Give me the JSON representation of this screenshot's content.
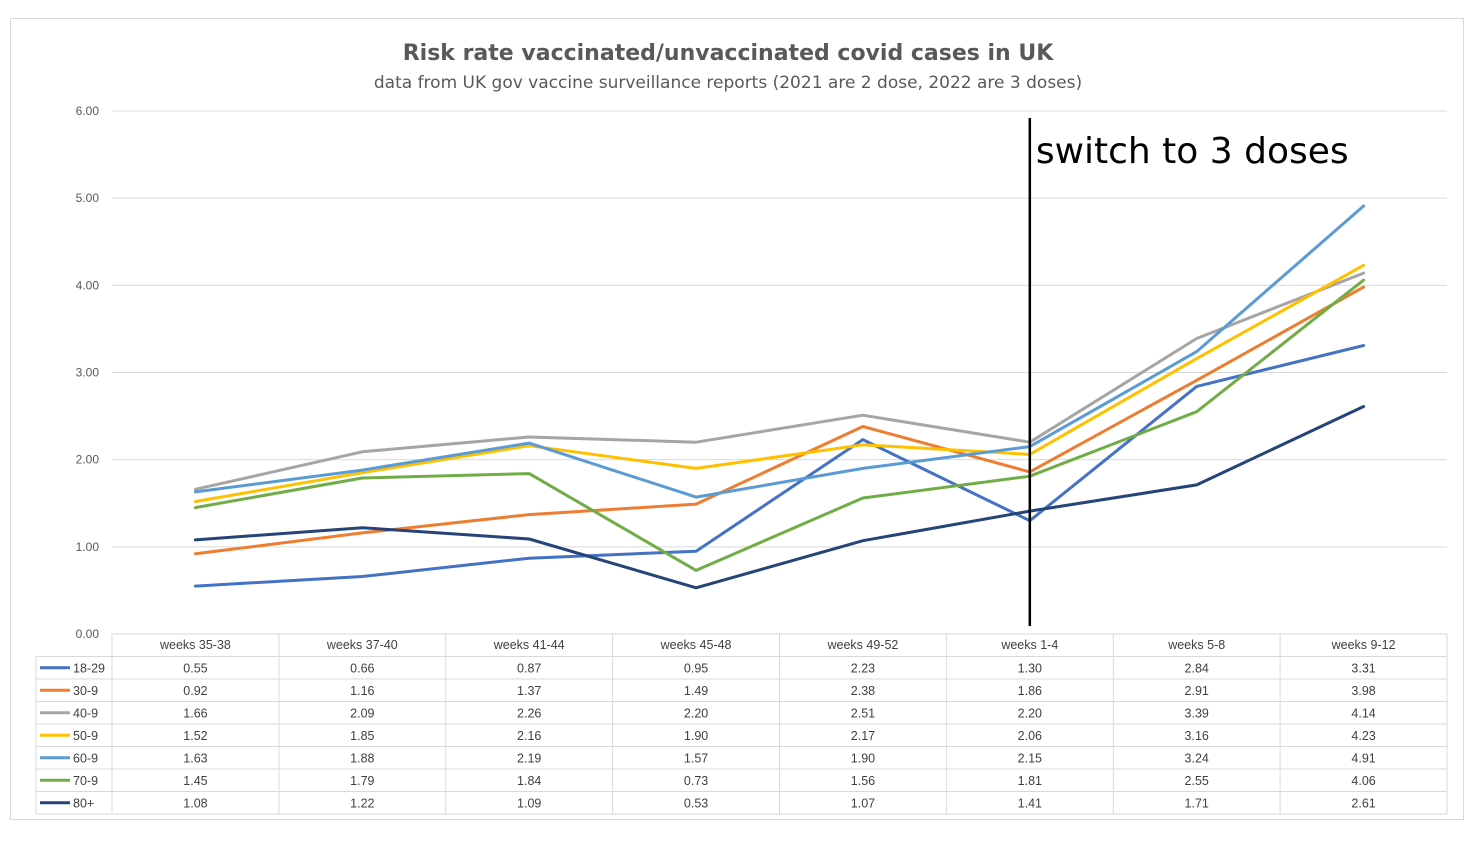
{
  "chart_data": {
    "type": "line",
    "title": "Risk rate vaccinated/unvaccinated covid cases in UK",
    "subtitle": "data from UK gov vaccine surveillance reports  (2021 are 2 dose, 2022 are 3 doses)",
    "categories": [
      "weeks 35-38",
      "weeks 37-40",
      "weeks 41-44",
      "weeks 45-48",
      "weeks 49-52",
      "weeks 1-4",
      "weeks 5-8",
      "weeks 9-12"
    ],
    "y_ticks": [
      "0.00",
      "1.00",
      "2.00",
      "3.00",
      "4.00",
      "5.00",
      "6.00"
    ],
    "ylim": [
      0,
      6
    ],
    "grid": true,
    "legend": "data table below chart",
    "annotation": {
      "text": "switch to 3 doses",
      "at_category": "weeks 1-4"
    },
    "series": [
      {
        "name": "18-29",
        "color": "#4472c4",
        "values": [
          0.55,
          0.66,
          0.87,
          0.95,
          2.23,
          1.3,
          2.84,
          3.31
        ],
        "labels": [
          "0.55",
          "0.66",
          "0.87",
          "0.95",
          "2.23",
          "1.30",
          "2.84",
          "3.31"
        ]
      },
      {
        "name": "30-9",
        "color": "#ed7d31",
        "values": [
          0.92,
          1.16,
          1.37,
          1.49,
          2.38,
          1.86,
          2.91,
          3.98
        ],
        "labels": [
          "0.92",
          "1.16",
          "1.37",
          "1.49",
          "2.38",
          "1.86",
          "2.91",
          "3.98"
        ]
      },
      {
        "name": "40-9",
        "color": "#a5a5a5",
        "values": [
          1.66,
          2.09,
          2.26,
          2.2,
          2.51,
          2.2,
          3.39,
          4.14
        ],
        "labels": [
          "1.66",
          "2.09",
          "2.26",
          "2.20",
          "2.51",
          "2.20",
          "3.39",
          "4.14"
        ]
      },
      {
        "name": "50-9",
        "color": "#ffc000",
        "values": [
          1.52,
          1.85,
          2.16,
          1.9,
          2.17,
          2.06,
          3.16,
          4.23
        ],
        "labels": [
          "1.52",
          "1.85",
          "2.16",
          "1.90",
          "2.17",
          "2.06",
          "3.16",
          "4.23"
        ]
      },
      {
        "name": "60-9",
        "color": "#5b9bd5",
        "values": [
          1.63,
          1.88,
          2.19,
          1.57,
          1.9,
          2.15,
          3.24,
          4.91
        ],
        "labels": [
          "1.63",
          "1.88",
          "2.19",
          "1.57",
          "1.90",
          "2.15",
          "3.24",
          "4.91"
        ]
      },
      {
        "name": "70-9",
        "color": "#70ad47",
        "values": [
          1.45,
          1.79,
          1.84,
          0.73,
          1.56,
          1.81,
          2.55,
          4.06
        ],
        "labels": [
          "1.45",
          "1.79",
          "1.84",
          "0.73",
          "1.56",
          "1.81",
          "2.55",
          "4.06"
        ]
      },
      {
        "name": "80+",
        "color": "#264478",
        "values": [
          1.08,
          1.22,
          1.09,
          0.53,
          1.07,
          1.41,
          1.71,
          2.61
        ],
        "labels": [
          "1.08",
          "1.22",
          "1.09",
          "0.53",
          "1.07",
          "1.41",
          "1.71",
          "2.61"
        ]
      }
    ]
  }
}
